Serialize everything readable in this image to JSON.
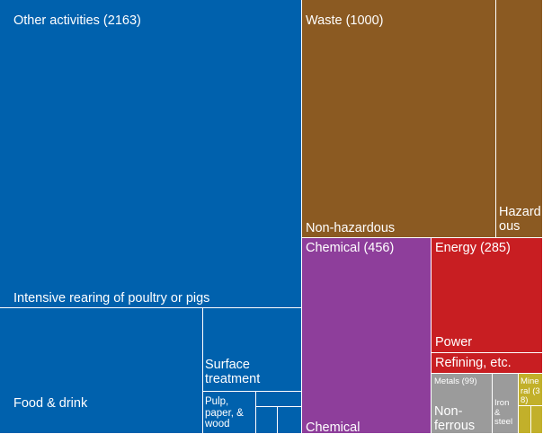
{
  "chart_data": {
    "type": "treemap",
    "groups": [
      {
        "name": "Other activities (2163)",
        "color": "#0061AD",
        "items": [
          {
            "name": "Intensive rearing of poultry or pigs"
          },
          {
            "name": "Food & drink"
          },
          {
            "name": "Surface treatment"
          },
          {
            "name": "Pulp, paper, & wood"
          }
        ]
      },
      {
        "name": "Waste (1000)",
        "color": "#8B5A22",
        "items": [
          {
            "name": "Non-hazardous"
          },
          {
            "name": "Hazardous"
          }
        ]
      },
      {
        "name": "Chemical (456)",
        "color": "#8E3E9B",
        "items": [
          {
            "name": "Chemical"
          }
        ]
      },
      {
        "name": "Energy (285)",
        "color": "#C81E22",
        "items": [
          {
            "name": "Power"
          },
          {
            "name": "Refining, etc."
          }
        ]
      },
      {
        "name": "Metals (99)",
        "color": "#9B9B9B",
        "items": [
          {
            "name": "Non-ferrous"
          },
          {
            "name": "Iron & steel"
          }
        ]
      },
      {
        "name": "Mineral (38)",
        "color": "#C2B02A",
        "items": []
      }
    ]
  },
  "labels": {
    "other": "Other activities (2163)",
    "rearing": "Intensive rearing of poultry or pigs",
    "food": "Food & drink",
    "surface": "Surface treatment",
    "pulp": "Pulp, paper, & wood",
    "waste": "Waste (1000)",
    "nonhaz": "Non-hazardous",
    "haz": "Hazardous",
    "chemical": "Chemical (456)",
    "chemical_sub": "Chemical",
    "energy": "Energy (285)",
    "power": "Power",
    "refining": "Refining, etc.",
    "metals": "Metals (99)",
    "nonferrous": "Non-ferrous",
    "ironsteel": "Iron & steel",
    "mineral": "Mineral (38)"
  }
}
